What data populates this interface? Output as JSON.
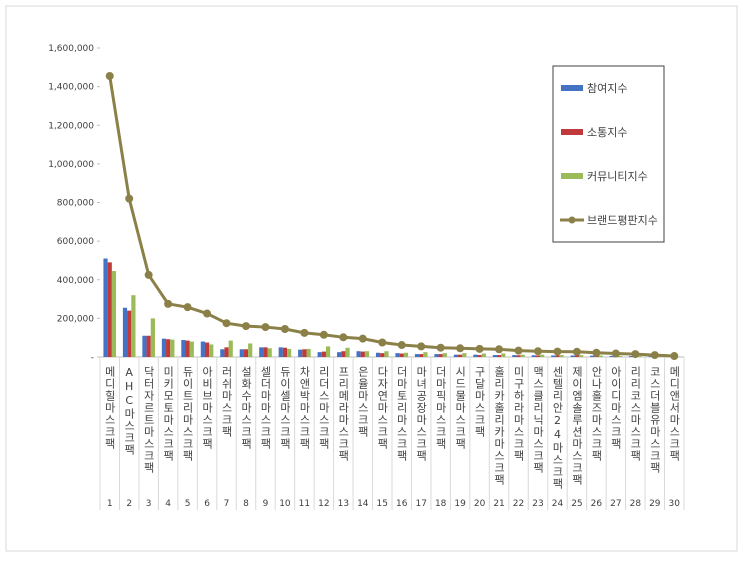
{
  "chart_data": {
    "type": "bar",
    "categories": [
      "메디힐마스크팩",
      "AHC마스크팩",
      "닥터자르트마스크팩",
      "미키모토마스크팩",
      "듀이트리마스크팩",
      "아비브마스크팩",
      "러쉬마스크팩",
      "설화수마스크팩",
      "셀더마마스크팩",
      "듀이셀마스크팩",
      "차앤박마스크팩",
      "리더스마스크팩",
      "프리메라마스크팩",
      "은율마스크팩",
      "다자연마스크팩",
      "더마토리마스크팩",
      "마녀공장마스크팩",
      "더마픽마스크팩",
      "시드물마스크팩",
      "구달마스크팩",
      "홀리카홀리카마스크팩",
      "미구하라마스크팩",
      "맥스클리닉마스크팩",
      "센텔리안24마스크팩",
      "제이엠솔루션마스크팩",
      "안나홀즈마스크팩",
      "아이디마스크팩",
      "리리코스마스크팩",
      "코스더블유마스크팩",
      "메디앤서마스크팩"
    ],
    "ranks": [
      1,
      2,
      3,
      4,
      5,
      6,
      7,
      8,
      9,
      10,
      11,
      12,
      13,
      14,
      15,
      16,
      17,
      18,
      19,
      20,
      21,
      22,
      23,
      24,
      25,
      26,
      27,
      28,
      29,
      30
    ],
    "series": [
      {
        "name": "참여지수",
        "type": "bar",
        "color": "#4472c4",
        "values": [
          510000,
          255000,
          110000,
          95000,
          88000,
          80000,
          40000,
          40000,
          50000,
          50000,
          38000,
          25000,
          25000,
          30000,
          22000,
          20000,
          15000,
          15000,
          12000,
          12000,
          10000,
          10000,
          9000,
          8000,
          8000,
          7000,
          6000,
          5000,
          4000,
          2000
        ]
      },
      {
        "name": "소통지수",
        "type": "bar",
        "color": "#c0393b",
        "values": [
          490000,
          240000,
          110000,
          92000,
          85000,
          75000,
          50000,
          40000,
          50000,
          48000,
          40000,
          28000,
          30000,
          28000,
          20000,
          18000,
          15000,
          15000,
          12000,
          10000,
          10000,
          9000,
          8000,
          8000,
          8000,
          6000,
          5000,
          5000,
          3000,
          2000
        ]
      },
      {
        "name": "커뮤니티지수",
        "type": "bar",
        "color": "#9bbb59",
        "values": [
          445000,
          320000,
          200000,
          90000,
          80000,
          65000,
          85000,
          70000,
          45000,
          42000,
          42000,
          55000,
          48000,
          30000,
          30000,
          22000,
          25000,
          20000,
          20000,
          18000,
          18000,
          12000,
          12000,
          10000,
          10000,
          8000,
          6000,
          5000,
          3000,
          1000
        ]
      },
      {
        "name": "브랜드평판지수",
        "type": "line",
        "color": "#8b8148",
        "values": [
          1455000,
          820000,
          425000,
          275000,
          258000,
          225000,
          175000,
          160000,
          155000,
          145000,
          125000,
          115000,
          102000,
          95000,
          75000,
          62000,
          55000,
          48000,
          45000,
          42000,
          40000,
          33000,
          30000,
          28000,
          27000,
          22000,
          18000,
          15000,
          10000,
          5000
        ]
      }
    ],
    "ylim": [
      0,
      1600000
    ],
    "yticks": [
      {
        "value": 0,
        "label": "-"
      },
      {
        "value": 200000,
        "label": "200,000"
      },
      {
        "value": 400000,
        "label": "400,000"
      },
      {
        "value": 600000,
        "label": "600,000"
      },
      {
        "value": 800000,
        "label": "800,000"
      },
      {
        "value": 1000000,
        "label": "1,000,000"
      },
      {
        "value": 1200000,
        "label": "1,200,000"
      },
      {
        "value": 1400000,
        "label": "1,400,000"
      },
      {
        "value": 1600000,
        "label": "1,600,000"
      }
    ],
    "legend": "right"
  }
}
